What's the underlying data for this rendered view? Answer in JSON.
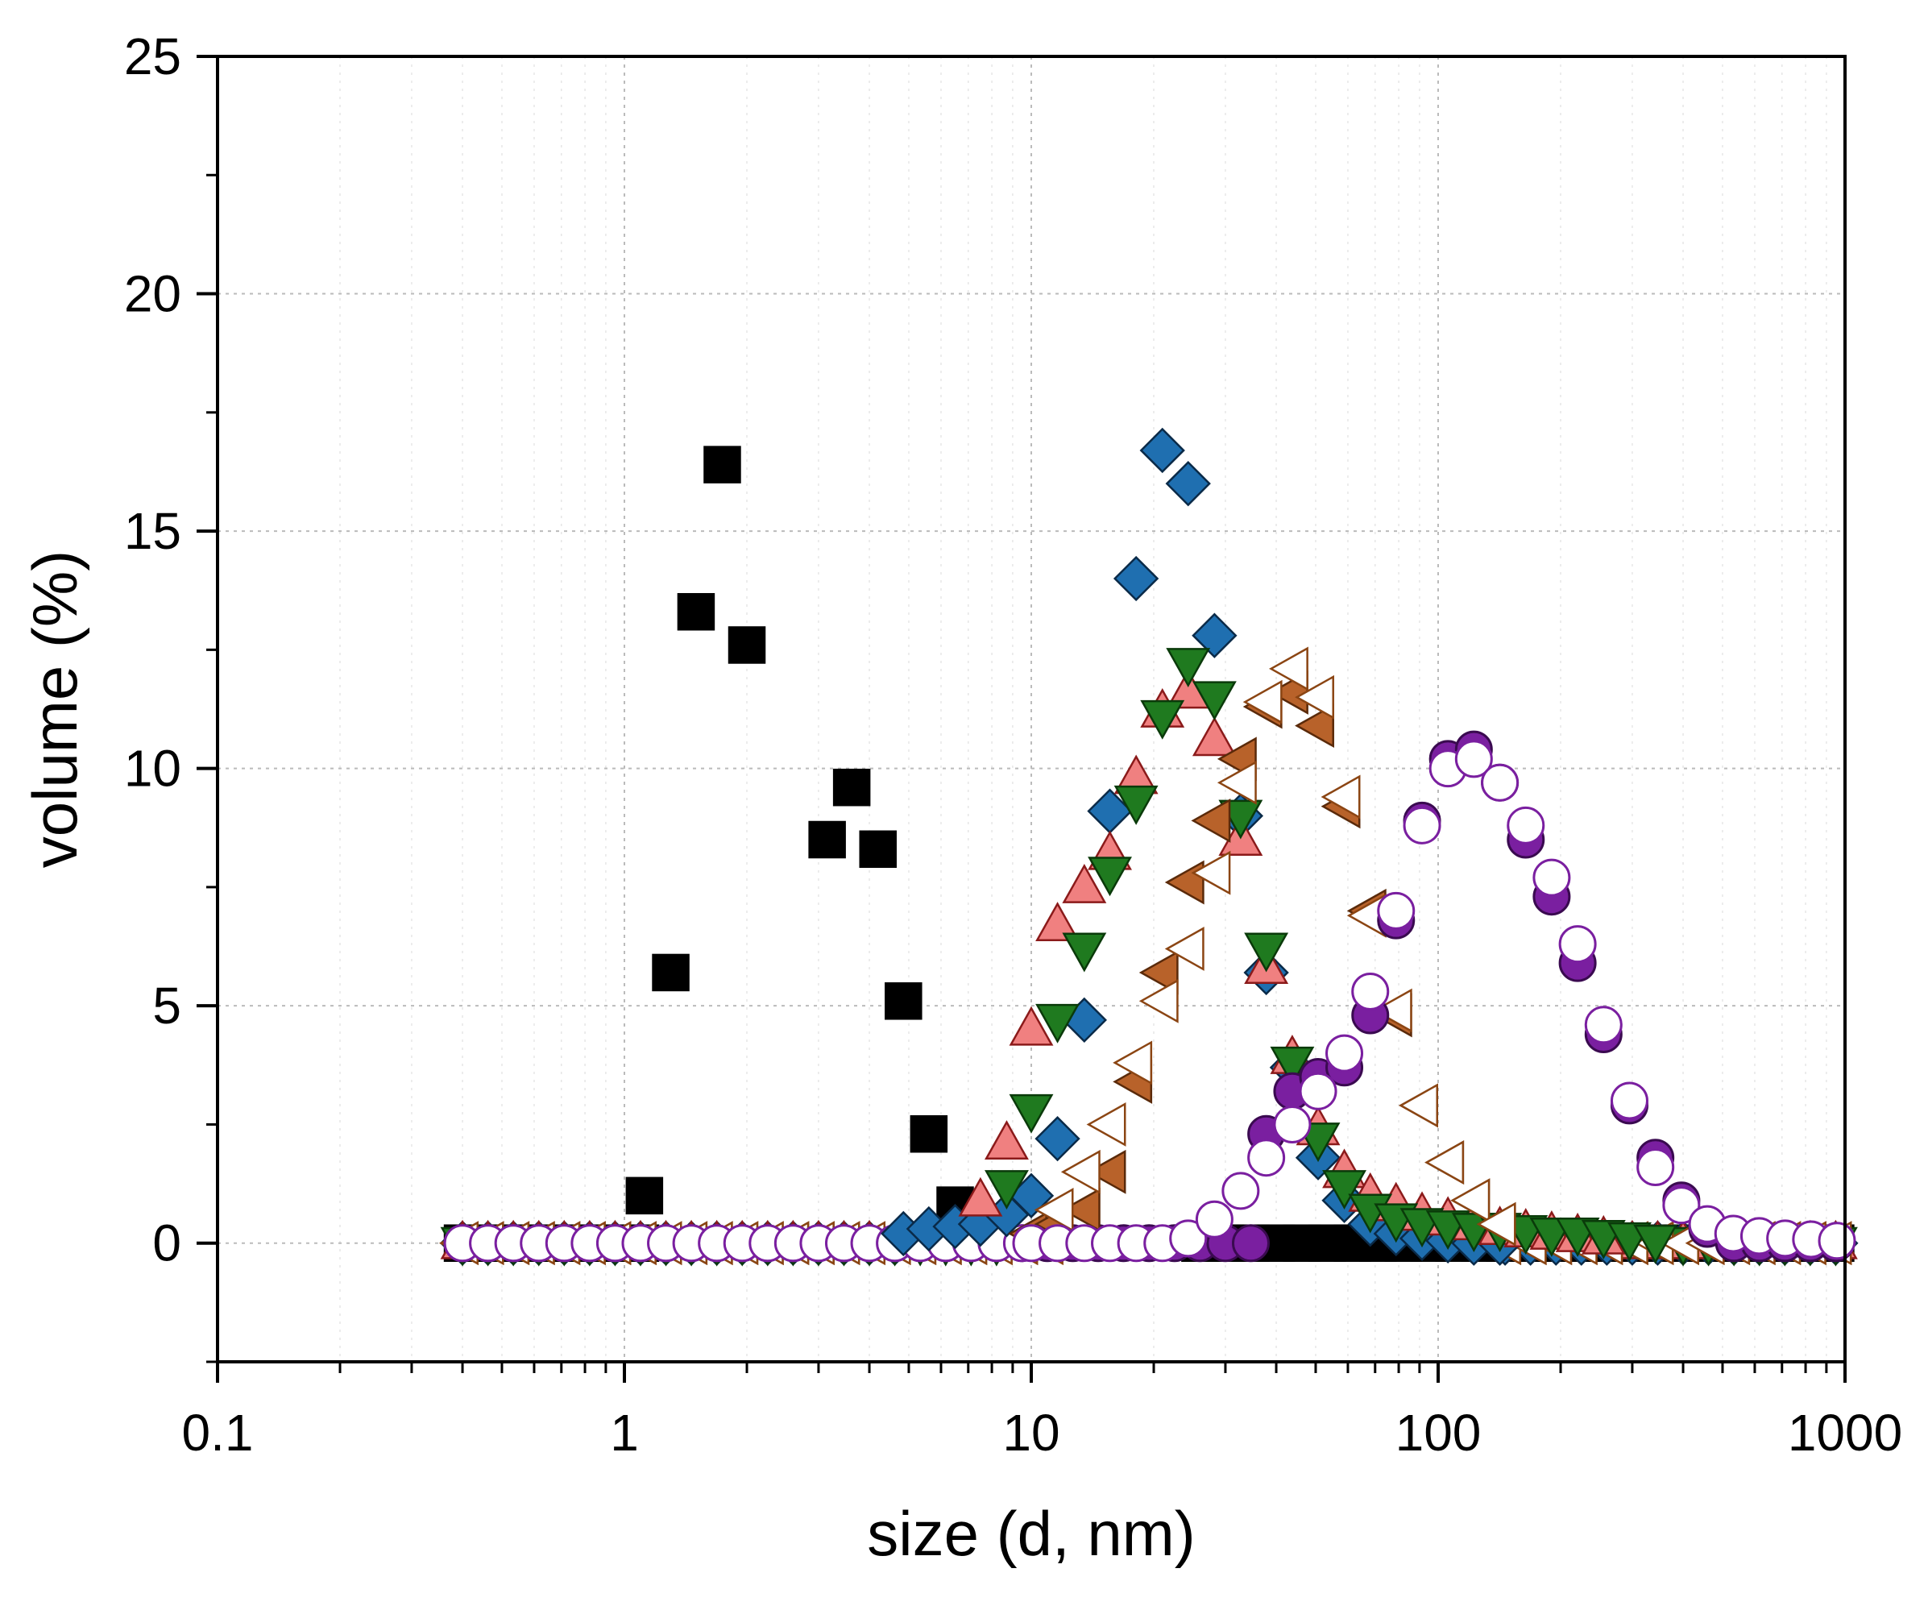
{
  "chart_data": {
    "type": "scatter",
    "title": "",
    "xlabel": "size (d, nm)",
    "ylabel": "volume (%)",
    "xscale": "log",
    "xlim": [
      0.1,
      1000
    ],
    "ylim": [
      -2.5,
      25
    ],
    "xticks": [
      0.1,
      1,
      10,
      100,
      1000
    ],
    "xtick_labels": [
      "0.1",
      "1",
      "10",
      "100",
      "1000"
    ],
    "yticks": [
      0,
      5,
      10,
      15,
      20,
      25
    ],
    "ytick_labels": [
      "0",
      "5",
      "10",
      "15",
      "20",
      "25"
    ],
    "grid": true,
    "legend": "none",
    "series": [
      {
        "name": "series-1 (black squares)",
        "marker": "square",
        "fill": "#000000",
        "stroke": "#000000",
        "x": [
          1.12,
          1.3,
          1.5,
          1.74,
          2.0,
          3.15,
          3.62,
          4.2,
          4.85,
          5.6,
          6.5
        ],
        "y": [
          1.0,
          5.7,
          13.3,
          16.4,
          12.6,
          8.5,
          9.6,
          8.3,
          5.1,
          2.3,
          0.8
        ]
      },
      {
        "name": "series-2 (blue diamonds)",
        "marker": "diamond",
        "fill": "#1f6fb0",
        "stroke": "#0a2a48",
        "x": [
          4.85,
          5.6,
          6.5,
          7.5,
          8.7,
          10.0,
          11.6,
          13.5,
          15.6,
          18.1,
          21.0,
          24.3,
          28.2,
          32.7,
          37.8,
          43.8,
          50.7,
          58.8,
          68.1,
          78.8,
          91.3,
          105.7,
          122.4,
          141.8
        ],
        "y": [
          0.2,
          0.3,
          0.35,
          0.4,
          0.6,
          1.0,
          2.2,
          4.7,
          9.1,
          14.0,
          16.7,
          16.0,
          12.8,
          9.0,
          5.7,
          3.7,
          1.8,
          0.9,
          0.4,
          0.2,
          0.1,
          0.05,
          0.0,
          0.0
        ]
      },
      {
        "name": "series-3 (red triangles up)",
        "marker": "triangle-up",
        "fill": "#f08080",
        "stroke": "#8b1a1a",
        "x": [
          7.5,
          8.7,
          10.0,
          11.6,
          13.5,
          15.6,
          18.1,
          21.0,
          24.3,
          28.2,
          32.7,
          37.8,
          43.8,
          50.7,
          58.8,
          68.1,
          78.8,
          91.3,
          105.7,
          122.4,
          141.8,
          164.2,
          190.1,
          220.2,
          255.0
        ],
        "y": [
          0.9,
          2.1,
          4.5,
          6.7,
          7.5,
          8.2,
          9.8,
          11.2,
          11.6,
          10.6,
          8.5,
          5.8,
          3.9,
          2.4,
          1.5,
          1.0,
          0.8,
          0.6,
          0.5,
          0.4,
          0.3,
          0.25,
          0.2,
          0.15,
          0.1
        ]
      },
      {
        "name": "series-4 (green triangles down)",
        "marker": "triangle-down",
        "fill": "#1f7a1f",
        "stroke": "#0a3a0a",
        "x": [
          8.7,
          10.0,
          11.6,
          13.5,
          15.6,
          18.1,
          21.0,
          24.3,
          28.2,
          32.7,
          37.8,
          43.8,
          50.7,
          58.8,
          68.1,
          78.8,
          91.3,
          105.7,
          122.4,
          141.8,
          164.2,
          190.1,
          220.2,
          255.0,
          295.3,
          342.0
        ],
        "y": [
          1.2,
          2.8,
          4.7,
          6.2,
          7.8,
          9.3,
          11.1,
          12.2,
          11.5,
          9.0,
          6.2,
          3.8,
          2.2,
          1.2,
          0.7,
          0.5,
          0.4,
          0.35,
          0.3,
          0.3,
          0.25,
          0.2,
          0.2,
          0.15,
          0.1,
          0.05
        ]
      },
      {
        "name": "series-5 (brown filled triangles left)",
        "marker": "triangle-left",
        "fill": "#b8622a",
        "stroke": "#5a2a0a",
        "x": [
          10.0,
          11.6,
          13.5,
          15.6,
          18.1,
          21.0,
          24.3,
          28.2,
          32.7,
          37.8,
          43.8,
          50.7,
          58.8,
          68.1,
          78.8,
          91.3,
          105.7,
          122.4,
          141.8
        ],
        "y": [
          0.2,
          0.4,
          0.7,
          1.5,
          3.4,
          5.7,
          7.6,
          8.9,
          10.2,
          11.3,
          11.6,
          10.9,
          9.2,
          7.0,
          4.8,
          2.9,
          1.7,
          0.9,
          0.4
        ]
      },
      {
        "name": "series-6 (brown open triangles left)",
        "marker": "triangle-left",
        "fill": "#ffffff",
        "stroke": "#8b4513",
        "x": [
          11.6,
          13.5,
          15.6,
          18.1,
          21.0,
          24.3,
          28.2,
          32.7,
          37.8,
          43.8,
          50.7,
          58.8,
          68.1,
          78.8,
          91.3,
          105.7,
          122.4,
          141.8
        ],
        "y": [
          0.7,
          1.5,
          2.5,
          3.8,
          5.1,
          6.2,
          7.8,
          9.7,
          11.4,
          12.1,
          11.5,
          9.4,
          6.9,
          4.9,
          2.9,
          1.7,
          0.9,
          0.4
        ]
      },
      {
        "name": "series-7 (purple filled circles)",
        "marker": "circle",
        "fill": "#7a1fa0",
        "stroke": "#3a0a50",
        "x": [
          37.8,
          43.8,
          50.7,
          58.8,
          68.1,
          78.8,
          91.3,
          105.7,
          122.4,
          141.8,
          164.2,
          190.1,
          220.2,
          255.0,
          295.3,
          342.0,
          396.1,
          458.7
        ],
        "y": [
          2.3,
          3.2,
          3.5,
          3.7,
          4.8,
          6.8,
          8.9,
          10.2,
          10.4,
          9.7,
          8.5,
          7.3,
          5.9,
          4.4,
          2.9,
          1.8,
          0.9,
          0.3
        ]
      },
      {
        "name": "series-8 (purple open circles)",
        "marker": "circle",
        "fill": "#ffffff",
        "stroke": "#7a1fa0",
        "x": [
          10.0,
          11.6,
          13.5,
          15.6,
          18.1,
          21.0,
          24.3,
          28.2,
          32.7,
          37.8,
          43.8,
          50.7,
          58.8,
          68.1,
          78.8,
          91.3,
          105.7,
          122.4,
          141.8,
          164.2,
          190.1,
          220.2,
          255.0,
          295.3,
          342.0,
          396.1,
          458.7,
          531.2,
          615.2,
          712.5,
          825.1,
          955.5
        ],
        "y": [
          0.0,
          0.0,
          0.0,
          0.0,
          0.0,
          0.0,
          0.1,
          0.5,
          1.1,
          1.8,
          2.5,
          3.2,
          4.0,
          5.3,
          7.0,
          8.8,
          10.0,
          10.2,
          9.7,
          8.8,
          7.7,
          6.3,
          4.6,
          3.0,
          1.6,
          0.8,
          0.4,
          0.2,
          0.15,
          0.1,
          0.08,
          0.05
        ]
      }
    ]
  }
}
